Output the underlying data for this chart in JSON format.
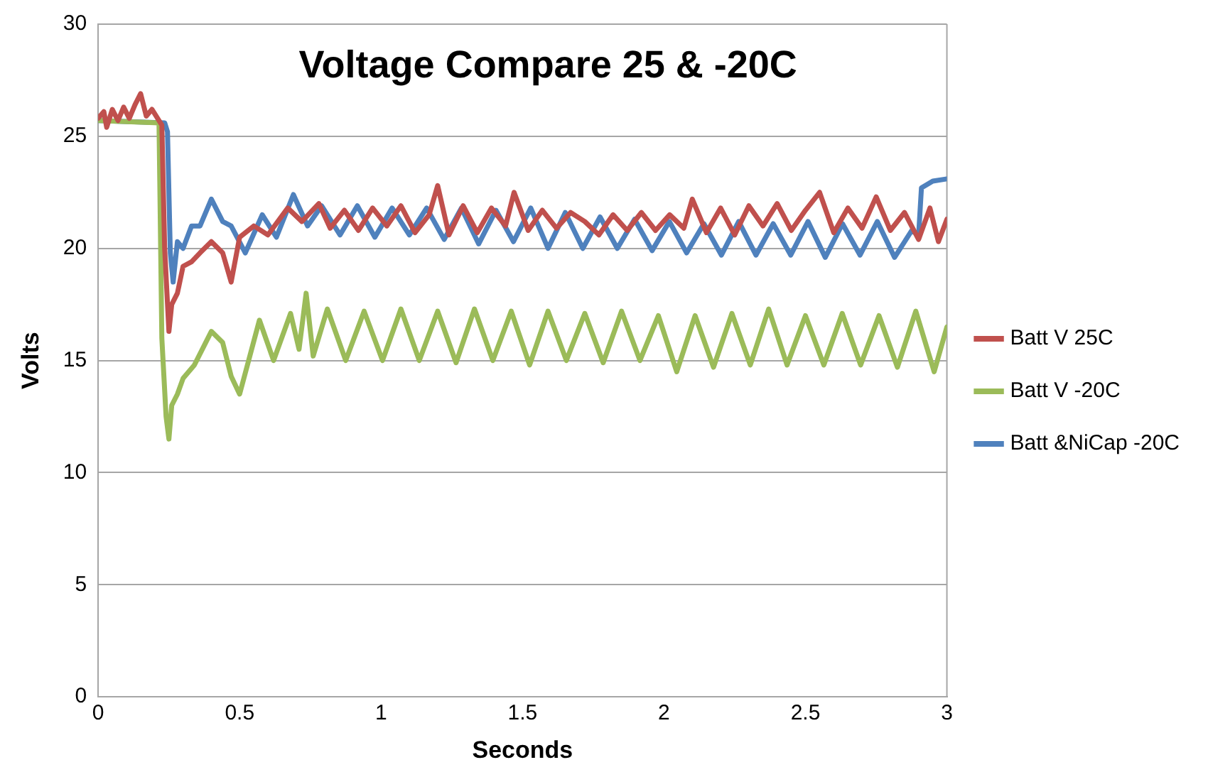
{
  "chart_data": {
    "type": "line",
    "title": "Voltage Compare 25 & -20C",
    "xlabel": "Seconds",
    "ylabel": "Volts",
    "xlim": [
      0,
      3
    ],
    "xticks": [
      0,
      0.5,
      1,
      1.5,
      2,
      2.5,
      3
    ],
    "ylim": [
      0,
      30
    ],
    "yticks": [
      0,
      5,
      10,
      15,
      20,
      25,
      30
    ],
    "grid": "y",
    "legend": "right",
    "marker": "none",
    "line_style": "solid",
    "series": [
      {
        "name": "Batt V 25C",
        "color": "#c0504d",
        "x": [
          0,
          0.02,
          0.03,
          0.05,
          0.07,
          0.09,
          0.11,
          0.13,
          0.15,
          0.17,
          0.19,
          0.21,
          0.225,
          0.235,
          0.25,
          0.26,
          0.28,
          0.3,
          0.33,
          0.36,
          0.4,
          0.44,
          0.47,
          0.5,
          0.55,
          0.6,
          0.67,
          0.72,
          0.78,
          0.82,
          0.87,
          0.92,
          0.97,
          1.02,
          1.07,
          1.12,
          1.17,
          1.2,
          1.24,
          1.29,
          1.34,
          1.39,
          1.44,
          1.47,
          1.52,
          1.57,
          1.62,
          1.67,
          1.72,
          1.77,
          1.82,
          1.87,
          1.92,
          1.97,
          2.02,
          2.07,
          2.1,
          2.15,
          2.2,
          2.25,
          2.3,
          2.35,
          2.4,
          2.45,
          2.5,
          2.55,
          2.6,
          2.65,
          2.7,
          2.75,
          2.8,
          2.85,
          2.9,
          2.94,
          2.97,
          3.0
        ],
        "values": [
          25.8,
          26.1,
          25.4,
          26.2,
          25.7,
          26.3,
          25.8,
          26.4,
          26.9,
          25.9,
          26.2,
          25.8,
          25.5,
          20,
          16.3,
          17.5,
          18,
          19.2,
          19.4,
          19.8,
          20.3,
          19.8,
          18.5,
          20.5,
          21,
          20.6,
          21.8,
          21.2,
          22,
          20.9,
          21.7,
          20.8,
          21.8,
          21.0,
          21.9,
          20.7,
          21.5,
          22.8,
          20.6,
          21.9,
          20.7,
          21.8,
          21.0,
          22.5,
          20.8,
          21.7,
          20.9,
          21.6,
          21.2,
          20.6,
          21.5,
          20.8,
          21.6,
          20.8,
          21.5,
          20.9,
          22.2,
          20.7,
          21.8,
          20.6,
          21.9,
          21.0,
          22.0,
          20.8,
          21.7,
          22.5,
          20.7,
          21.8,
          20.9,
          22.3,
          20.8,
          21.6,
          20.4,
          21.8,
          20.3,
          21.3
        ]
      },
      {
        "name": "Batt V -20C",
        "color": "#9bbb59",
        "x": [
          0,
          0.215,
          0.225,
          0.24,
          0.25,
          0.26,
          0.28,
          0.3,
          0.34,
          0.38,
          0.4,
          0.44,
          0.47,
          0.5,
          0.57,
          0.62,
          0.68,
          0.71,
          0.735,
          0.76,
          0.81,
          0.875,
          0.94,
          1.005,
          1.07,
          1.135,
          1.2,
          1.265,
          1.33,
          1.395,
          1.46,
          1.525,
          1.59,
          1.655,
          1.72,
          1.785,
          1.85,
          1.915,
          1.98,
          2.045,
          2.11,
          2.175,
          2.24,
          2.305,
          2.37,
          2.435,
          2.5,
          2.565,
          2.63,
          2.695,
          2.76,
          2.825,
          2.89,
          2.955,
          3.0
        ],
        "values": [
          25.7,
          25.6,
          16,
          12.5,
          11.5,
          13,
          13.5,
          14.2,
          14.8,
          15.8,
          16.3,
          15.8,
          14.3,
          13.5,
          16.8,
          15.0,
          17.1,
          15.5,
          18,
          15.2,
          17.3,
          15.0,
          17.2,
          15.0,
          17.3,
          15.0,
          17.2,
          14.9,
          17.3,
          15.0,
          17.2,
          14.8,
          17.2,
          15.0,
          17.1,
          14.9,
          17.2,
          15.0,
          17.0,
          14.5,
          17.0,
          14.7,
          17.1,
          14.8,
          17.3,
          14.8,
          17.0,
          14.8,
          17.1,
          14.8,
          17.0,
          14.7,
          17.2,
          14.5,
          16.5
        ]
      },
      {
        "name": "Batt &NiCap -20C",
        "color": "#4f81bd",
        "x": [
          0,
          0.235,
          0.245,
          0.255,
          0.265,
          0.28,
          0.3,
          0.33,
          0.36,
          0.4,
          0.44,
          0.47,
          0.52,
          0.58,
          0.63,
          0.69,
          0.74,
          0.79,
          0.855,
          0.916,
          0.978,
          1.039,
          1.1,
          1.161,
          1.223,
          1.284,
          1.345,
          1.406,
          1.468,
          1.529,
          1.59,
          1.651,
          1.713,
          1.774,
          1.835,
          1.896,
          1.958,
          2.019,
          2.08,
          2.141,
          2.203,
          2.264,
          2.325,
          2.386,
          2.448,
          2.509,
          2.57,
          2.631,
          2.693,
          2.754,
          2.815,
          2.876,
          2.9,
          2.91,
          2.95,
          3.0
        ],
        "values": [
          25.7,
          25.6,
          25.2,
          19.8,
          18.5,
          20.3,
          20.0,
          21.0,
          21.0,
          22.2,
          21.2,
          21.0,
          19.8,
          21.5,
          20.5,
          22.4,
          21.0,
          21.9,
          20.6,
          21.9,
          20.5,
          21.8,
          20.6,
          21.8,
          20.4,
          21.8,
          20.2,
          21.7,
          20.3,
          21.8,
          20.0,
          21.6,
          20.0,
          21.4,
          20.0,
          21.3,
          19.9,
          21.2,
          19.8,
          21.1,
          19.7,
          21.2,
          19.7,
          21.1,
          19.7,
          21.2,
          19.6,
          21.1,
          19.7,
          21.2,
          19.6,
          20.8,
          20.6,
          22.7,
          23.0,
          23.1
        ]
      }
    ]
  }
}
